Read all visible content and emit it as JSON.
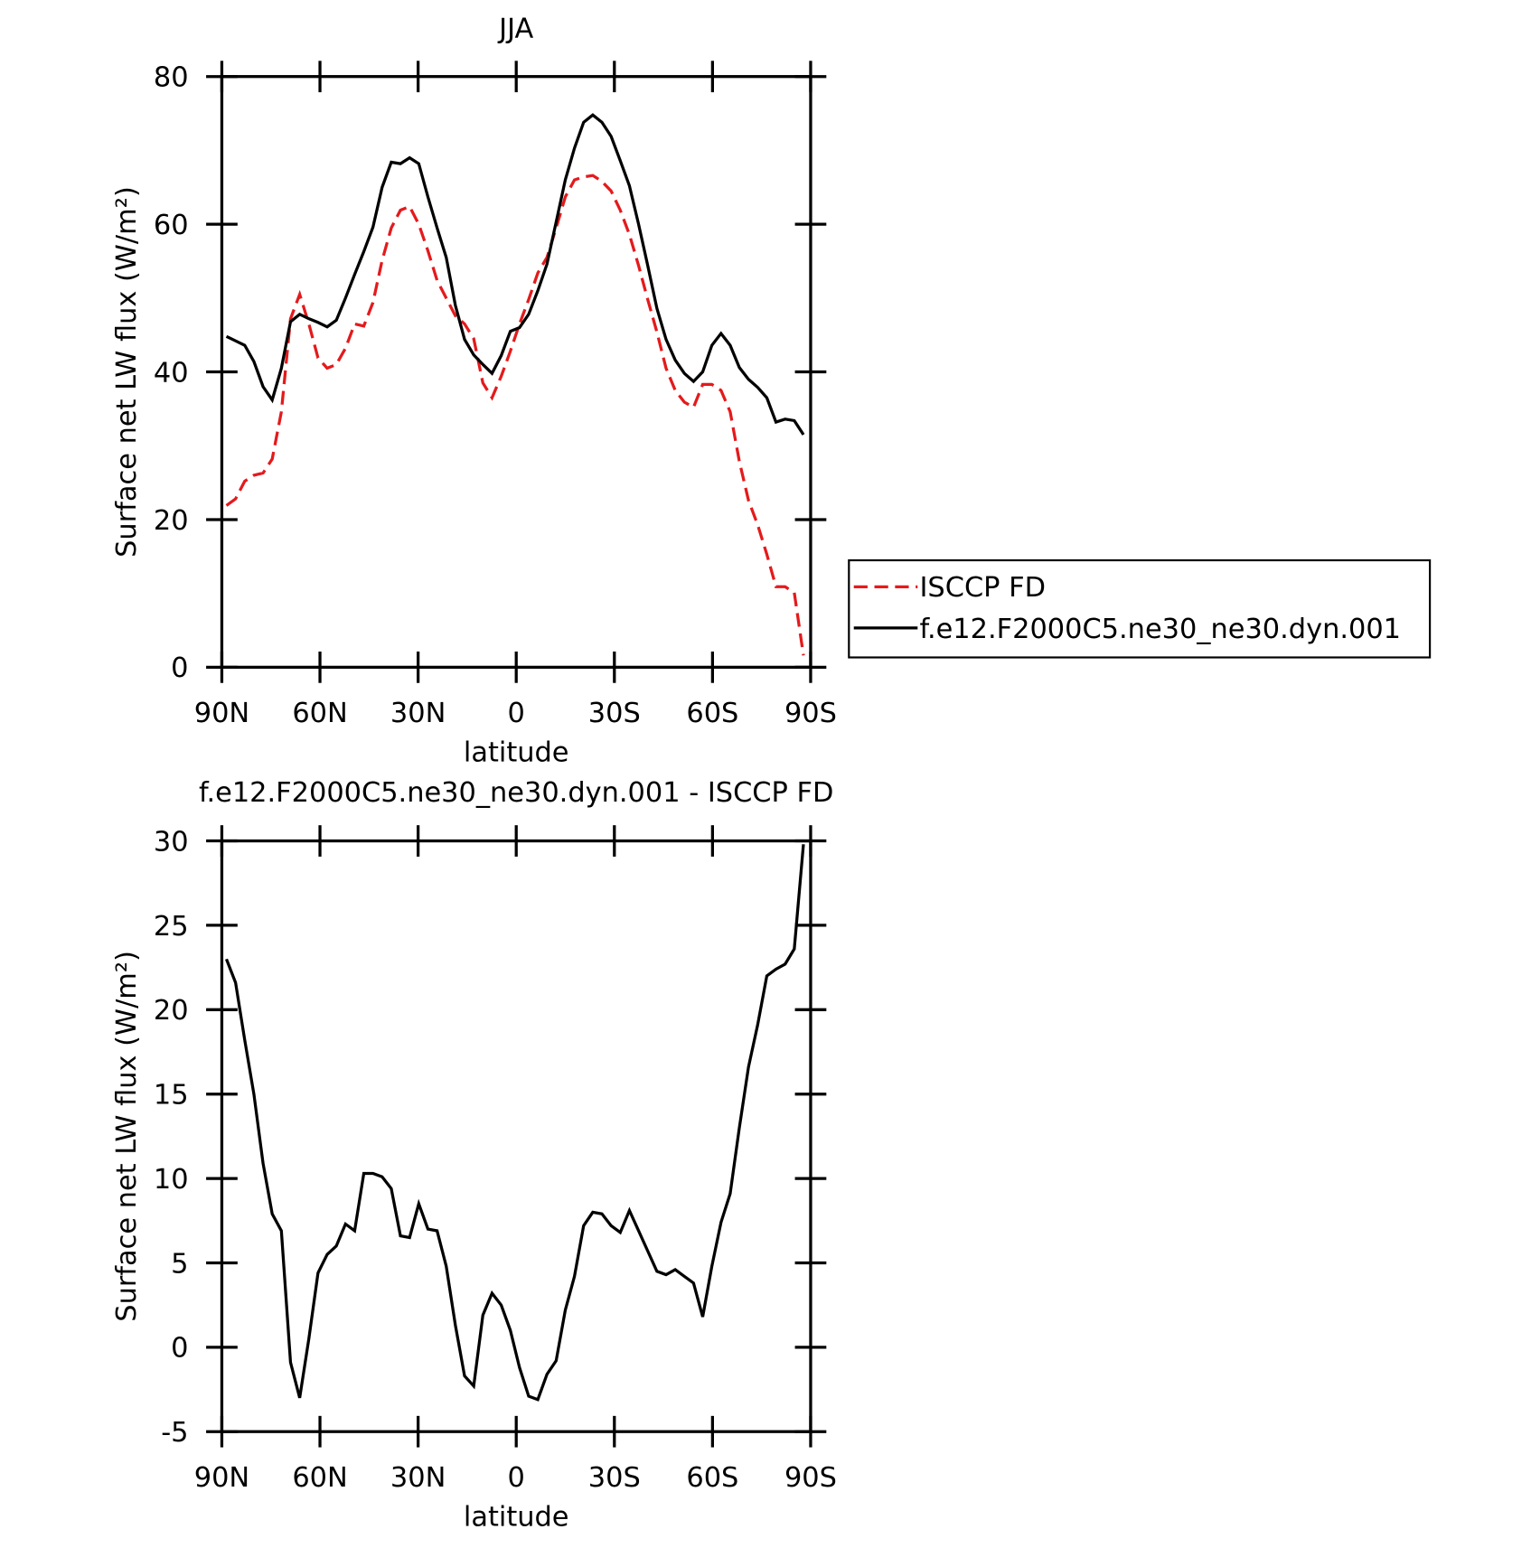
{
  "chart_data": [
    {
      "type": "line",
      "title": "JJA",
      "xlabel": "latitude",
      "ylabel": "Surface net LW flux (W/m²)",
      "x": [
        88.6,
        85.8,
        83.0,
        80.2,
        77.4,
        74.6,
        71.8,
        69.0,
        66.2,
        63.4,
        60.6,
        57.8,
        55.0,
        52.2,
        49.4,
        46.6,
        43.8,
        41.0,
        38.2,
        35.4,
        32.6,
        29.8,
        27.0,
        24.2,
        21.4,
        18.6,
        15.8,
        13.0,
        10.2,
        7.4,
        4.6,
        1.8,
        -1.0,
        -3.8,
        -6.6,
        -9.4,
        -12.2,
        -15.0,
        -17.8,
        -20.6,
        -23.4,
        -26.2,
        -29.0,
        -31.8,
        -34.6,
        -37.4,
        -40.2,
        -43.0,
        -45.8,
        -48.6,
        -51.4,
        -54.2,
        -57.0,
        -59.8,
        -62.6,
        -65.4,
        -68.2,
        -71.0,
        -73.8,
        -76.6,
        -79.4,
        -82.2,
        -85.0,
        -87.8
      ],
      "series": [
        {
          "name": "ISCCP FD",
          "color": "#e41a1c",
          "style": "dashed",
          "values": [
            21.9,
            22.8,
            25.2,
            26.0,
            26.3,
            28.2,
            34.6,
            47.2,
            50.5,
            46.5,
            41.9,
            40.5,
            41.0,
            43.2,
            46.5,
            46.2,
            49.4,
            55.1,
            59.5,
            61.9,
            62.4,
            60.0,
            56.4,
            52.4,
            50.0,
            47.6,
            46.5,
            44.5,
            38.5,
            36.5,
            39.4,
            42.8,
            46.5,
            49.8,
            53.4,
            55.5,
            59.5,
            63.7,
            66.0,
            66.4,
            66.6,
            65.8,
            64.5,
            61.9,
            58.6,
            54.4,
            49.8,
            45.4,
            40.5,
            37.5,
            35.9,
            35.2,
            38.3,
            38.3,
            37.5,
            34.6,
            27.9,
            22.6,
            19.3,
            15.3,
            10.9,
            10.9,
            10.1,
            1.6
          ]
        },
        {
          "name": "f.e12.F2000C5.ne30_ne30.dyn.001",
          "color": "#000000",
          "style": "solid",
          "values": [
            44.8,
            44.2,
            43.6,
            41.4,
            38.0,
            36.2,
            40.5,
            46.8,
            47.8,
            47.2,
            46.7,
            46.1,
            47.0,
            50.0,
            53.2,
            56.3,
            59.6,
            65.0,
            68.4,
            68.2,
            69.0,
            68.2,
            63.7,
            59.5,
            55.5,
            49.0,
            44.4,
            42.3,
            41.0,
            39.8,
            42.2,
            45.5,
            46.0,
            47.8,
            51.0,
            54.6,
            60.3,
            66.0,
            70.3,
            73.8,
            74.8,
            73.8,
            71.9,
            68.6,
            65.2,
            60.0,
            54.4,
            48.6,
            44.4,
            41.6,
            39.8,
            38.7,
            40.0,
            43.6,
            45.2,
            43.6,
            40.6,
            39.0,
            37.9,
            36.5,
            33.2,
            33.6,
            33.4,
            31.5
          ]
        }
      ],
      "xlim": [
        90,
        -90
      ],
      "xticks": [
        {
          "value": 90,
          "label": "90N"
        },
        {
          "value": 60,
          "label": "60N"
        },
        {
          "value": 30,
          "label": "30N"
        },
        0,
        {
          "value": -30,
          "label": "30S"
        },
        {
          "value": -60,
          "label": "60S"
        },
        {
          "value": -90,
          "label": "90S"
        }
      ],
      "ylim": [
        0,
        80
      ],
      "yticks": [
        0,
        20,
        40,
        60,
        80
      ],
      "legend": "right"
    },
    {
      "type": "line",
      "title": "f.e12.F2000C5.ne30_ne30.dyn.001 - ISCCP FD",
      "xlabel": "latitude",
      "ylabel": "Surface net LW flux (W/m²)",
      "x": [
        88.6,
        85.8,
        83.0,
        80.2,
        77.4,
        74.6,
        71.8,
        69.0,
        66.2,
        63.4,
        60.6,
        57.8,
        55.0,
        52.2,
        49.4,
        46.6,
        43.8,
        41.0,
        38.2,
        35.4,
        32.6,
        29.8,
        27.0,
        24.2,
        21.4,
        18.6,
        15.8,
        13.0,
        10.2,
        7.4,
        4.6,
        1.8,
        -1.0,
        -3.8,
        -6.6,
        -9.4,
        -12.2,
        -15.0,
        -17.8,
        -20.6,
        -23.4,
        -26.2,
        -29.0,
        -31.8,
        -34.6,
        -37.4,
        -40.2,
        -43.0,
        -45.8,
        -48.6,
        -51.4,
        -54.2,
        -57.0,
        -59.8,
        -62.6,
        -65.4,
        -68.2,
        -71.0,
        -73.8,
        -76.6,
        -79.4,
        -82.2,
        -85.0,
        -87.8
      ],
      "values": [
        23.0,
        21.6,
        18.2,
        15.0,
        10.9,
        7.9,
        6.9,
        -0.9,
        -3.0,
        0.5,
        4.4,
        5.5,
        6.0,
        7.3,
        6.9,
        10.3,
        10.3,
        10.1,
        9.4,
        6.6,
        6.5,
        8.5,
        7.0,
        6.9,
        4.8,
        1.3,
        -1.7,
        -2.3,
        1.9,
        3.2,
        2.5,
        1.0,
        -1.2,
        -2.9,
        -3.1,
        -1.6,
        -0.8,
        2.2,
        4.2,
        7.2,
        8.0,
        7.9,
        7.2,
        6.8,
        8.1,
        6.9,
        5.7,
        4.5,
        4.3,
        4.6,
        4.2,
        3.8,
        1.8,
        4.8,
        7.4,
        9.1,
        13.0,
        16.6,
        19.1,
        22.0,
        22.4,
        22.7,
        23.6,
        29.8
      ],
      "color": "#000000",
      "style": "solid",
      "xlim": [
        90,
        -90
      ],
      "xticks": [
        {
          "value": 90,
          "label": "90N"
        },
        {
          "value": 60,
          "label": "60N"
        },
        {
          "value": 30,
          "label": "30N"
        },
        0,
        {
          "value": -30,
          "label": "30S"
        },
        {
          "value": -60,
          "label": "60S"
        },
        {
          "value": -90,
          "label": "90S"
        }
      ],
      "ylim": [
        -5,
        30
      ],
      "yticks": [
        -5,
        0,
        5,
        10,
        15,
        20,
        25,
        30
      ]
    }
  ]
}
